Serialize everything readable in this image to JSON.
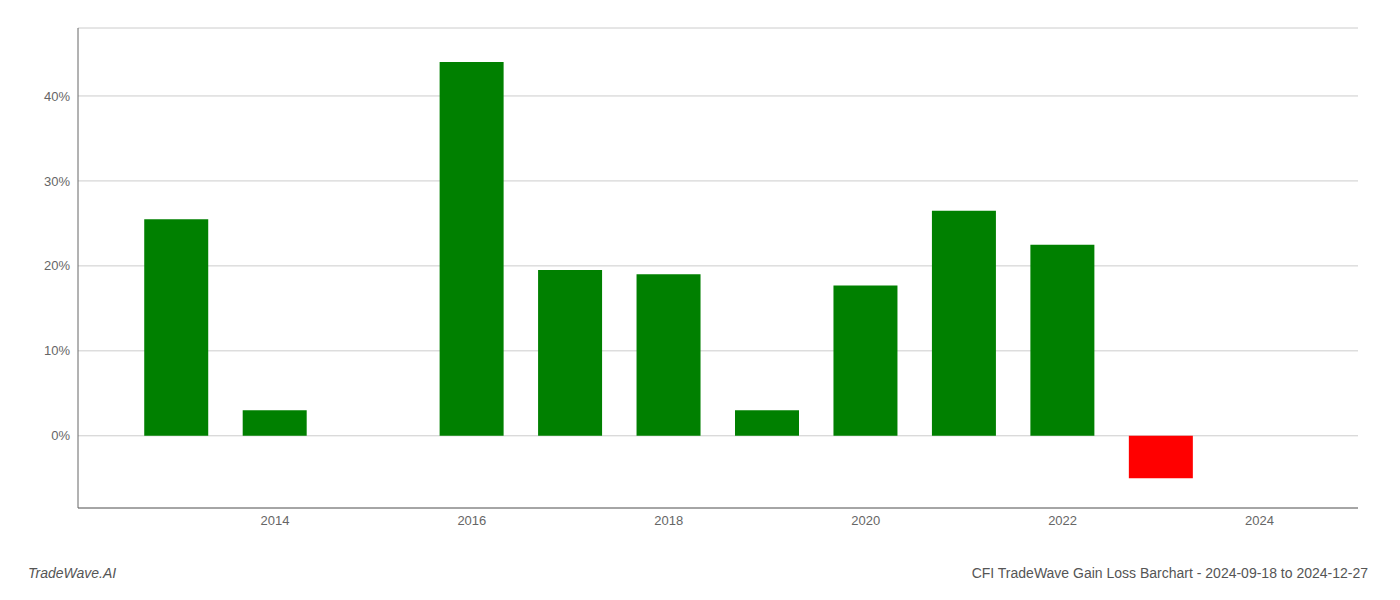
{
  "chart_data": {
    "type": "bar",
    "x": [
      2013,
      2014,
      2016,
      2017,
      2018,
      2019,
      2020,
      2021,
      2022,
      2023
    ],
    "values": [
      25.5,
      3.0,
      44.0,
      19.5,
      19.0,
      3.0,
      17.7,
      26.5,
      22.5,
      -5.0
    ],
    "colors": [
      "#008000",
      "#008000",
      "#008000",
      "#008000",
      "#008000",
      "#008000",
      "#008000",
      "#008000",
      "#008000",
      "#ff0000"
    ],
    "xlim": [
      2012.0,
      2025.0
    ],
    "xticks": [
      2014,
      2016,
      2018,
      2020,
      2022,
      2024
    ],
    "ylim": [
      -8.5,
      48
    ],
    "yticks": [
      {
        "value": 0,
        "label": "0%"
      },
      {
        "value": 10,
        "label": "10%"
      },
      {
        "value": 20,
        "label": "20%"
      },
      {
        "value": 30,
        "label": "30%"
      },
      {
        "value": 40,
        "label": "40%"
      }
    ],
    "grid": true,
    "annotations": [
      "TradeWave.AI",
      "CFI TradeWave Gain Loss Barchart - 2024-09-18 to 2024-12-27"
    ]
  }
}
